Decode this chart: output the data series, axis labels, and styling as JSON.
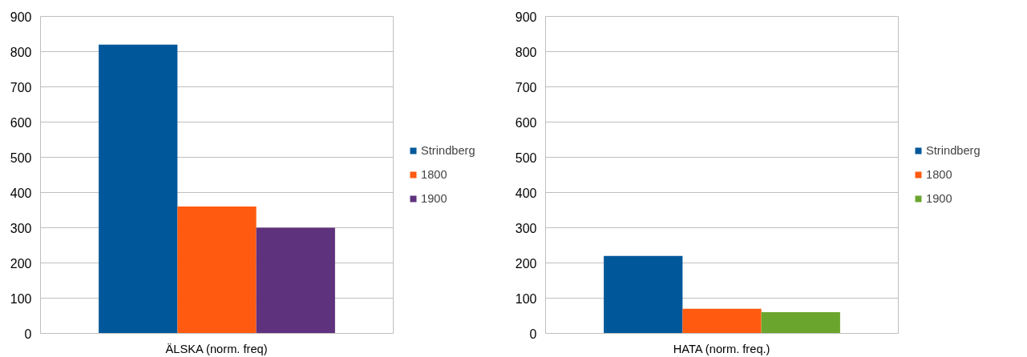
{
  "chart_data": [
    {
      "type": "bar",
      "categories": [
        "ÄLSKA (norm. freq)"
      ],
      "series": [
        {
          "name": "Strindberg",
          "color": "#00589a",
          "values": [
            820
          ]
        },
        {
          "name": "1800",
          "color": "#ff5a0f",
          "values": [
            360
          ]
        },
        {
          "name": "1900",
          "color": "#5f327e",
          "values": [
            300
          ]
        }
      ],
      "ylim": [
        0,
        900
      ],
      "yticks": [
        0,
        100,
        200,
        300,
        400,
        500,
        600,
        700,
        800,
        900
      ],
      "grid": "y",
      "legend": "right"
    },
    {
      "type": "bar",
      "categories": [
        "HATA (norm. freq.)"
      ],
      "series": [
        {
          "name": "Strindberg",
          "color": "#00589a",
          "values": [
            220
          ]
        },
        {
          "name": "1800",
          "color": "#ff5a0f",
          "values": [
            70
          ]
        },
        {
          "name": "1900",
          "color": "#6aa62d",
          "values": [
            60
          ]
        }
      ],
      "ylim": [
        0,
        900
      ],
      "yticks": [
        0,
        100,
        200,
        300,
        400,
        500,
        600,
        700,
        800,
        900
      ],
      "grid": "y",
      "legend": "right"
    }
  ]
}
